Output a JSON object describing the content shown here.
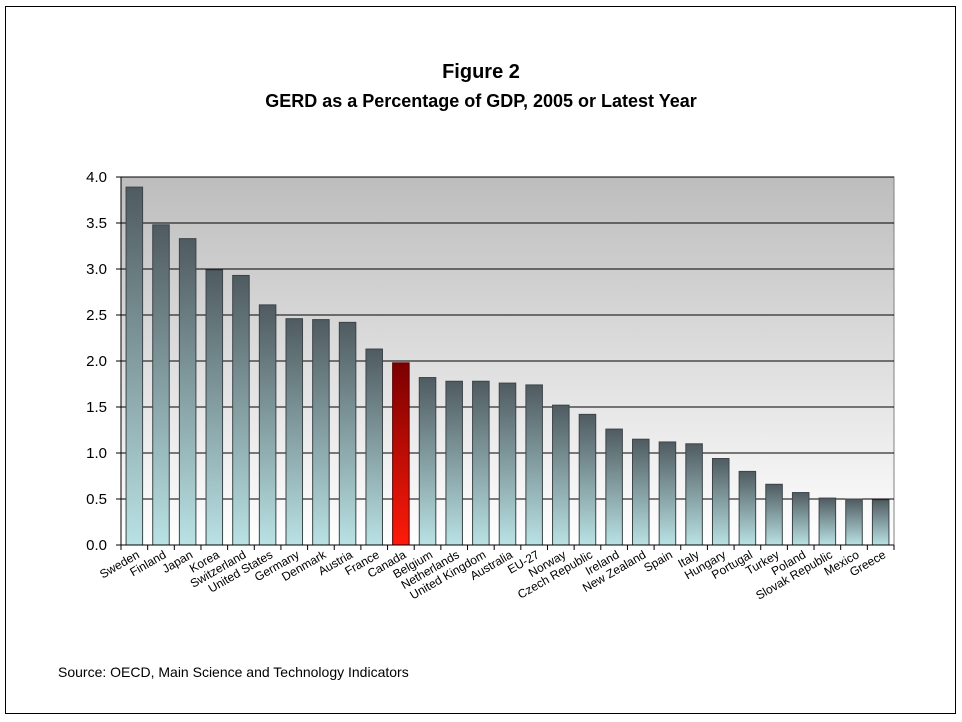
{
  "title": "Figure 2",
  "subtitle": "GERD as a Percentage of GDP, 2005 or Latest Year",
  "source": "Source: OECD, Main Science and Technology Indicators",
  "colors": {
    "bar_top": "#4f5b60",
    "bar_bottom": "#b9e2e4",
    "highlight_top": "#7a0000",
    "highlight_bottom": "#ff1a0a",
    "plot_top": "#bdbdbd",
    "plot_bottom": "#ffffff",
    "grid": "#000000"
  },
  "chart_data": {
    "type": "bar",
    "title": "Figure 2",
    "subtitle": "GERD as a Percentage of GDP, 2005 or Latest Year",
    "xlabel": "",
    "ylabel": "",
    "ylim": [
      0,
      4.0
    ],
    "yticks": [
      "0.0",
      "0.5",
      "1.0",
      "1.5",
      "2.0",
      "2.5",
      "3.0",
      "3.5",
      "4.0"
    ],
    "grid": "horizontal",
    "highlight": "Canada",
    "categories": [
      "Sweden",
      "Finland",
      "Japan",
      "Korea",
      "Switzerland",
      "United States",
      "Germany",
      "Denmark",
      "Austria",
      "France",
      "Canada",
      "Belgium",
      "Netherlands",
      "United Kingdom",
      "Australia",
      "EU-27",
      "Norway",
      "Czech Republic",
      "Ireland",
      "New Zealand",
      "Spain",
      "Italy",
      "Hungary",
      "Portugal",
      "Turkey",
      "Poland",
      "Slovak Republic",
      "Mexico",
      "Greece"
    ],
    "values": [
      3.89,
      3.48,
      3.33,
      2.99,
      2.93,
      2.61,
      2.46,
      2.45,
      2.42,
      2.13,
      1.98,
      1.82,
      1.78,
      1.78,
      1.76,
      1.74,
      1.52,
      1.42,
      1.26,
      1.15,
      1.12,
      1.1,
      0.94,
      0.8,
      0.66,
      0.57,
      0.51,
      0.5,
      0.49
    ]
  }
}
